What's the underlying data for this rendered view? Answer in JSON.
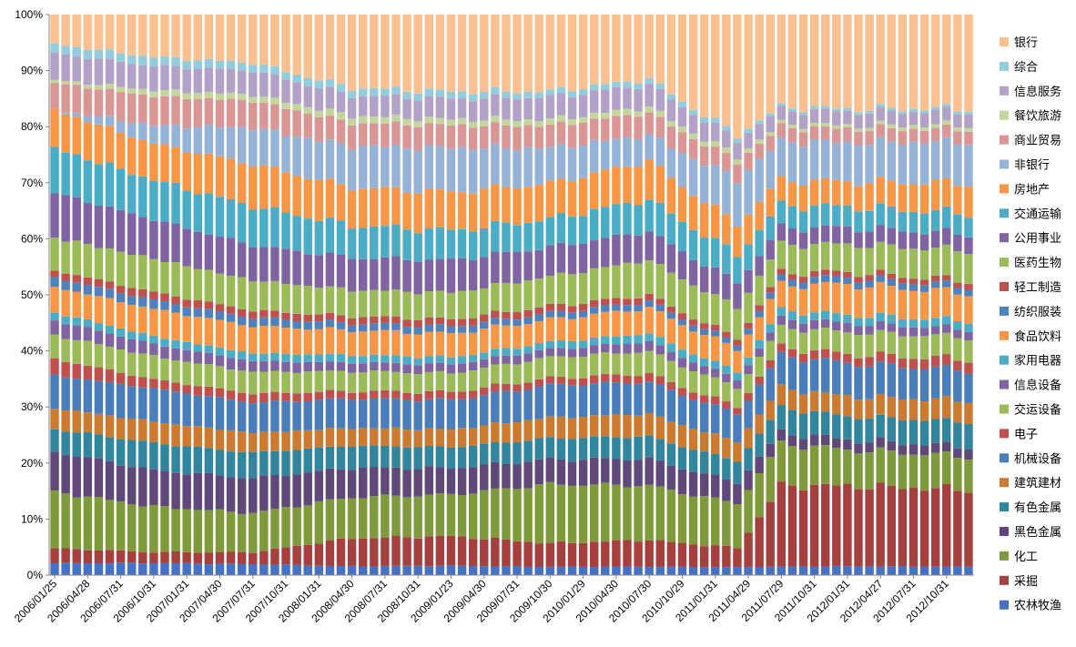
{
  "chart_data": {
    "type": "bar",
    "stacked": true,
    "percent_stacked": true,
    "title": "",
    "xlabel": "",
    "ylabel": "",
    "ylim": [
      0,
      100
    ],
    "grid": false,
    "legend_position": "right",
    "y_ticks": [
      "0%",
      "10%",
      "20%",
      "30%",
      "40%",
      "50%",
      "60%",
      "70%",
      "80%",
      "90%",
      "100%"
    ],
    "x_tick_labels": [
      "2006/01/25",
      "2006/04/28",
      "2006/07/31",
      "2006/10/31",
      "2007/01/31",
      "2007/04/30",
      "2007/07/31",
      "2007/10/31",
      "2008/01/31",
      "2008/04/30",
      "2008/07/31",
      "2008/10/31",
      "2009/01/23",
      "2009/04/30",
      "2009/07/31",
      "2009/10/30",
      "2010/01/29",
      "2010/04/30",
      "2010/07/30",
      "2010/10/29",
      "2011/01/31",
      "2011/04/29",
      "2011/07/29",
      "2011/10/31",
      "2012/01/31",
      "2012/04/27",
      "2012/07/31",
      "2012/10/31"
    ],
    "n_bars": 84,
    "keyframes": [
      0,
      9,
      18,
      27,
      36,
      45,
      54,
      62,
      66,
      72,
      83
    ],
    "series": [
      {
        "name": "农林牧渔",
        "color": "#4472C4",
        "values": [
          2.0,
          2.0,
          1.8,
          1.5,
          1.6,
          1.4,
          1.3,
          1.4,
          1.5,
          1.6,
          1.5
        ]
      },
      {
        "name": "采掘",
        "color": "#A5403F",
        "values": [
          2.5,
          1.8,
          2.0,
          4.8,
          5.0,
          4.0,
          4.2,
          3.5,
          14.5,
          14.5,
          14.0
        ]
      },
      {
        "name": "化工",
        "color": "#7E9A3A",
        "values": [
          9.5,
          7.5,
          6.5,
          7.0,
          7.0,
          10.0,
          8.5,
          8.0,
          7.5,
          6.5,
          6.0
        ]
      },
      {
        "name": "黑色金属",
        "color": "#60497A",
        "values": [
          6.8,
          6.0,
          5.8,
          5.0,
          4.5,
          4.2,
          4.2,
          3.8,
          2.0,
          1.8,
          1.8
        ]
      },
      {
        "name": "有色金属",
        "color": "#31859C",
        "values": [
          3.8,
          4.5,
          4.2,
          3.8,
          3.5,
          3.6,
          3.5,
          3.8,
          4.5,
          4.2,
          4.5
        ]
      },
      {
        "name": "建筑建材",
        "color": "#CC7A30",
        "values": [
          3.5,
          3.5,
          3.3,
          3.0,
          3.0,
          3.5,
          3.5,
          3.5,
          3.5,
          3.6,
          3.8
        ]
      },
      {
        "name": "机械设备",
        "color": "#4A7EBB",
        "values": [
          5.5,
          5.5,
          5.0,
          5.0,
          5.0,
          5.5,
          5.0,
          5.0,
          5.8,
          6.0,
          5.5
        ]
      },
      {
        "name": "电子",
        "color": "#C0504D",
        "values": [
          2.8,
          1.5,
          1.5,
          1.3,
          1.3,
          1.2,
          1.3,
          1.3,
          1.5,
          1.6,
          2.0
        ]
      },
      {
        "name": "交运设备",
        "color": "#9BBB59",
        "values": [
          4.0,
          3.8,
          3.6,
          3.4,
          3.2,
          3.5,
          3.5,
          3.4,
          3.5,
          4.0,
          4.0
        ]
      },
      {
        "name": "信息设备",
        "color": "#8064A2",
        "values": [
          2.5,
          2.0,
          1.8,
          1.5,
          1.5,
          1.4,
          1.5,
          1.5,
          1.6,
          1.6,
          1.5
        ]
      },
      {
        "name": "家用电器",
        "color": "#4BACC6",
        "values": [
          1.3,
          1.3,
          1.3,
          1.3,
          1.2,
          1.2,
          1.3,
          1.4,
          1.5,
          1.5,
          1.5
        ]
      },
      {
        "name": "食品饮料",
        "color": "#F79646",
        "values": [
          4.3,
          4.5,
          4.5,
          4.2,
          4.0,
          3.8,
          4.0,
          4.0,
          4.5,
          5.5,
          5.0
        ]
      },
      {
        "name": "纺织服装",
        "color": "#4F81BD",
        "values": [
          1.6,
          1.5,
          1.4,
          1.2,
          1.2,
          1.1,
          1.0,
          1.0,
          1.2,
          1.2,
          1.2
        ]
      },
      {
        "name": "轻工制造",
        "color": "#C0504D",
        "values": [
          1.2,
          1.3,
          1.2,
          1.2,
          1.2,
          1.2,
          1.0,
          1.0,
          1.0,
          1.0,
          1.0
        ]
      },
      {
        "name": "医药生物",
        "color": "#9BBB59",
        "values": [
          5.5,
          5.5,
          5.0,
          4.5,
          4.5,
          5.0,
          5.5,
          5.5,
          5.0,
          5.0,
          5.5
        ]
      },
      {
        "name": "公用事业",
        "color": "#8064A2",
        "values": [
          7.5,
          6.5,
          5.8,
          5.5,
          5.5,
          5.0,
          4.5,
          4.5,
          3.0,
          3.0,
          3.0
        ]
      },
      {
        "name": "交通运输",
        "color": "#4BACC6",
        "values": [
          7.5,
          6.5,
          6.5,
          5.5,
          5.0,
          4.8,
          5.0,
          5.0,
          4.0,
          3.8,
          3.7
        ]
      },
      {
        "name": "房地产",
        "color": "#F79646",
        "values": [
          6.5,
          6.0,
          7.0,
          6.5,
          6.5,
          6.0,
          6.0,
          5.5,
          4.5,
          4.5,
          5.5
        ]
      },
      {
        "name": "非银行",
        "color": "#95B3D7",
        "values": [
          0.0,
          3.0,
          6.0,
          7.0,
          7.5,
          6.0,
          4.0,
          8.0,
          7.0,
          7.0,
          7.5
        ]
      },
      {
        "name": "商业贸易",
        "color": "#D99694",
        "values": [
          4.5,
          4.8,
          4.5,
          4.0,
          3.8,
          3.8,
          3.5,
          3.2,
          2.5,
          2.5,
          2.3
        ]
      },
      {
        "name": "餐饮旅游",
        "color": "#C3D69B",
        "values": [
          0.5,
          1.0,
          1.0,
          1.2,
          1.0,
          1.0,
          0.9,
          0.9,
          0.6,
          0.6,
          0.7
        ]
      },
      {
        "name": "信息服务",
        "color": "#B3A2C7",
        "values": [
          4.5,
          4.0,
          4.0,
          3.5,
          3.5,
          3.8,
          3.5,
          3.0,
          2.5,
          2.5,
          2.5
        ]
      },
      {
        "name": "综合",
        "color": "#93CDDD",
        "values": [
          1.5,
          1.5,
          1.3,
          1.3,
          1.2,
          1.0,
          0.9,
          0.8,
          0.5,
          0.5,
          0.5
        ]
      },
      {
        "name": "银行",
        "color": "#FAC090",
        "values": [
          5.0,
          7.0,
          8.0,
          12.5,
          13.0,
          13.0,
          10.0,
          21.5,
          16.5,
          17.0,
          17.0
        ]
      }
    ]
  }
}
